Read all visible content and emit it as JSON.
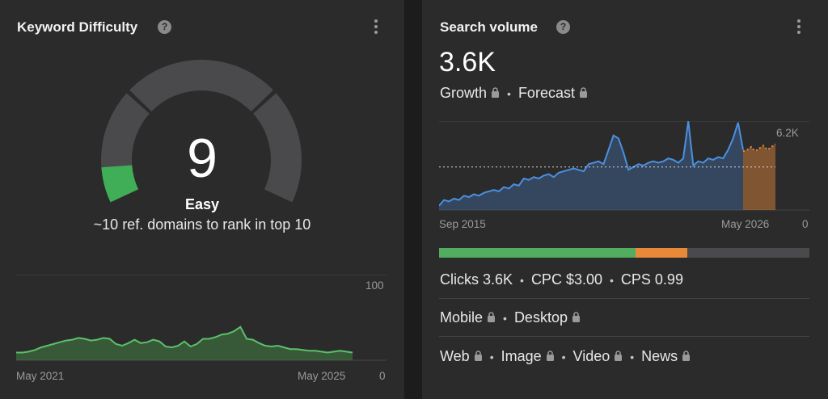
{
  "keyword_difficulty": {
    "title": "Keyword Difficulty",
    "help_symbol": "?",
    "score": "9",
    "score_value": 9,
    "label": "Easy",
    "subtitle": "~10 ref. domains to rank in top 10",
    "gauge_color": "#3fae56",
    "gauge_track_color": "#4a4a4c",
    "trend": {
      "start_label": "May 2021",
      "end_label": "May 2025",
      "y_max_label": "100",
      "y_min_label": "0",
      "ylim": [
        0,
        100
      ],
      "values": [
        9,
        9,
        10,
        12,
        15,
        17,
        19,
        21,
        23,
        24,
        26,
        25,
        23,
        24,
        26,
        25,
        19,
        17,
        20,
        24,
        20,
        21,
        24,
        22,
        16,
        15,
        17,
        22,
        16,
        19,
        25,
        25,
        27,
        30,
        31,
        34,
        39,
        25,
        24,
        20,
        17,
        16,
        17,
        15,
        13,
        13,
        12,
        11,
        11,
        10,
        9,
        10,
        11,
        10,
        9
      ]
    }
  },
  "search_volume": {
    "title": "Search volume",
    "help_symbol": "?",
    "value": "3.6K",
    "growth_label": "Growth",
    "forecast_label": "Forecast",
    "chart": {
      "start_label": "Sep 2015",
      "end_label": "May 2026",
      "y_max_label": "6.2K",
      "y_min_label": "0",
      "ylim": [
        0,
        6200
      ],
      "avg_line_value": 3000,
      "line_color": "#4a90e2",
      "forecast_color": "#e8893a",
      "history": [
        300,
        700,
        600,
        800,
        700,
        1000,
        900,
        1100,
        1000,
        1200,
        1300,
        1400,
        1300,
        1600,
        1500,
        1800,
        1700,
        2200,
        2100,
        2300,
        2200,
        2400,
        2500,
        2300,
        2600,
        2700,
        2800,
        2900,
        2800,
        2700,
        3200,
        3300,
        3400,
        3200,
        4200,
        5200,
        5000,
        4000,
        2800,
        3000,
        3200,
        3100,
        3300,
        3400,
        3300,
        3400,
        3600,
        3500,
        3300,
        3600,
        6200,
        3100,
        3400,
        3300,
        3600,
        3500,
        3700,
        3600,
        4200,
        5000,
        6100,
        4200
      ],
      "forecast": [
        4100,
        4200,
        4400,
        4100,
        4300,
        4500,
        4200,
        4400,
        4600
      ]
    },
    "split_bar": {
      "segments": [
        {
          "name": "clicks",
          "fraction": 0.53,
          "color": "#52ad60"
        },
        {
          "name": "paid",
          "fraction": 0.14,
          "color": "#e8893a"
        },
        {
          "name": "no-clicks",
          "fraction": 0.33,
          "color": "#4a4a4c"
        }
      ]
    },
    "metrics": {
      "clicks": "Clicks 3.6K",
      "cpc": "CPC $3.00",
      "cps": "CPS 0.99"
    },
    "devices": {
      "mobile": "Mobile",
      "desktop": "Desktop"
    },
    "serp_types": {
      "web": "Web",
      "image": "Image",
      "video": "Video",
      "news": "News"
    }
  }
}
